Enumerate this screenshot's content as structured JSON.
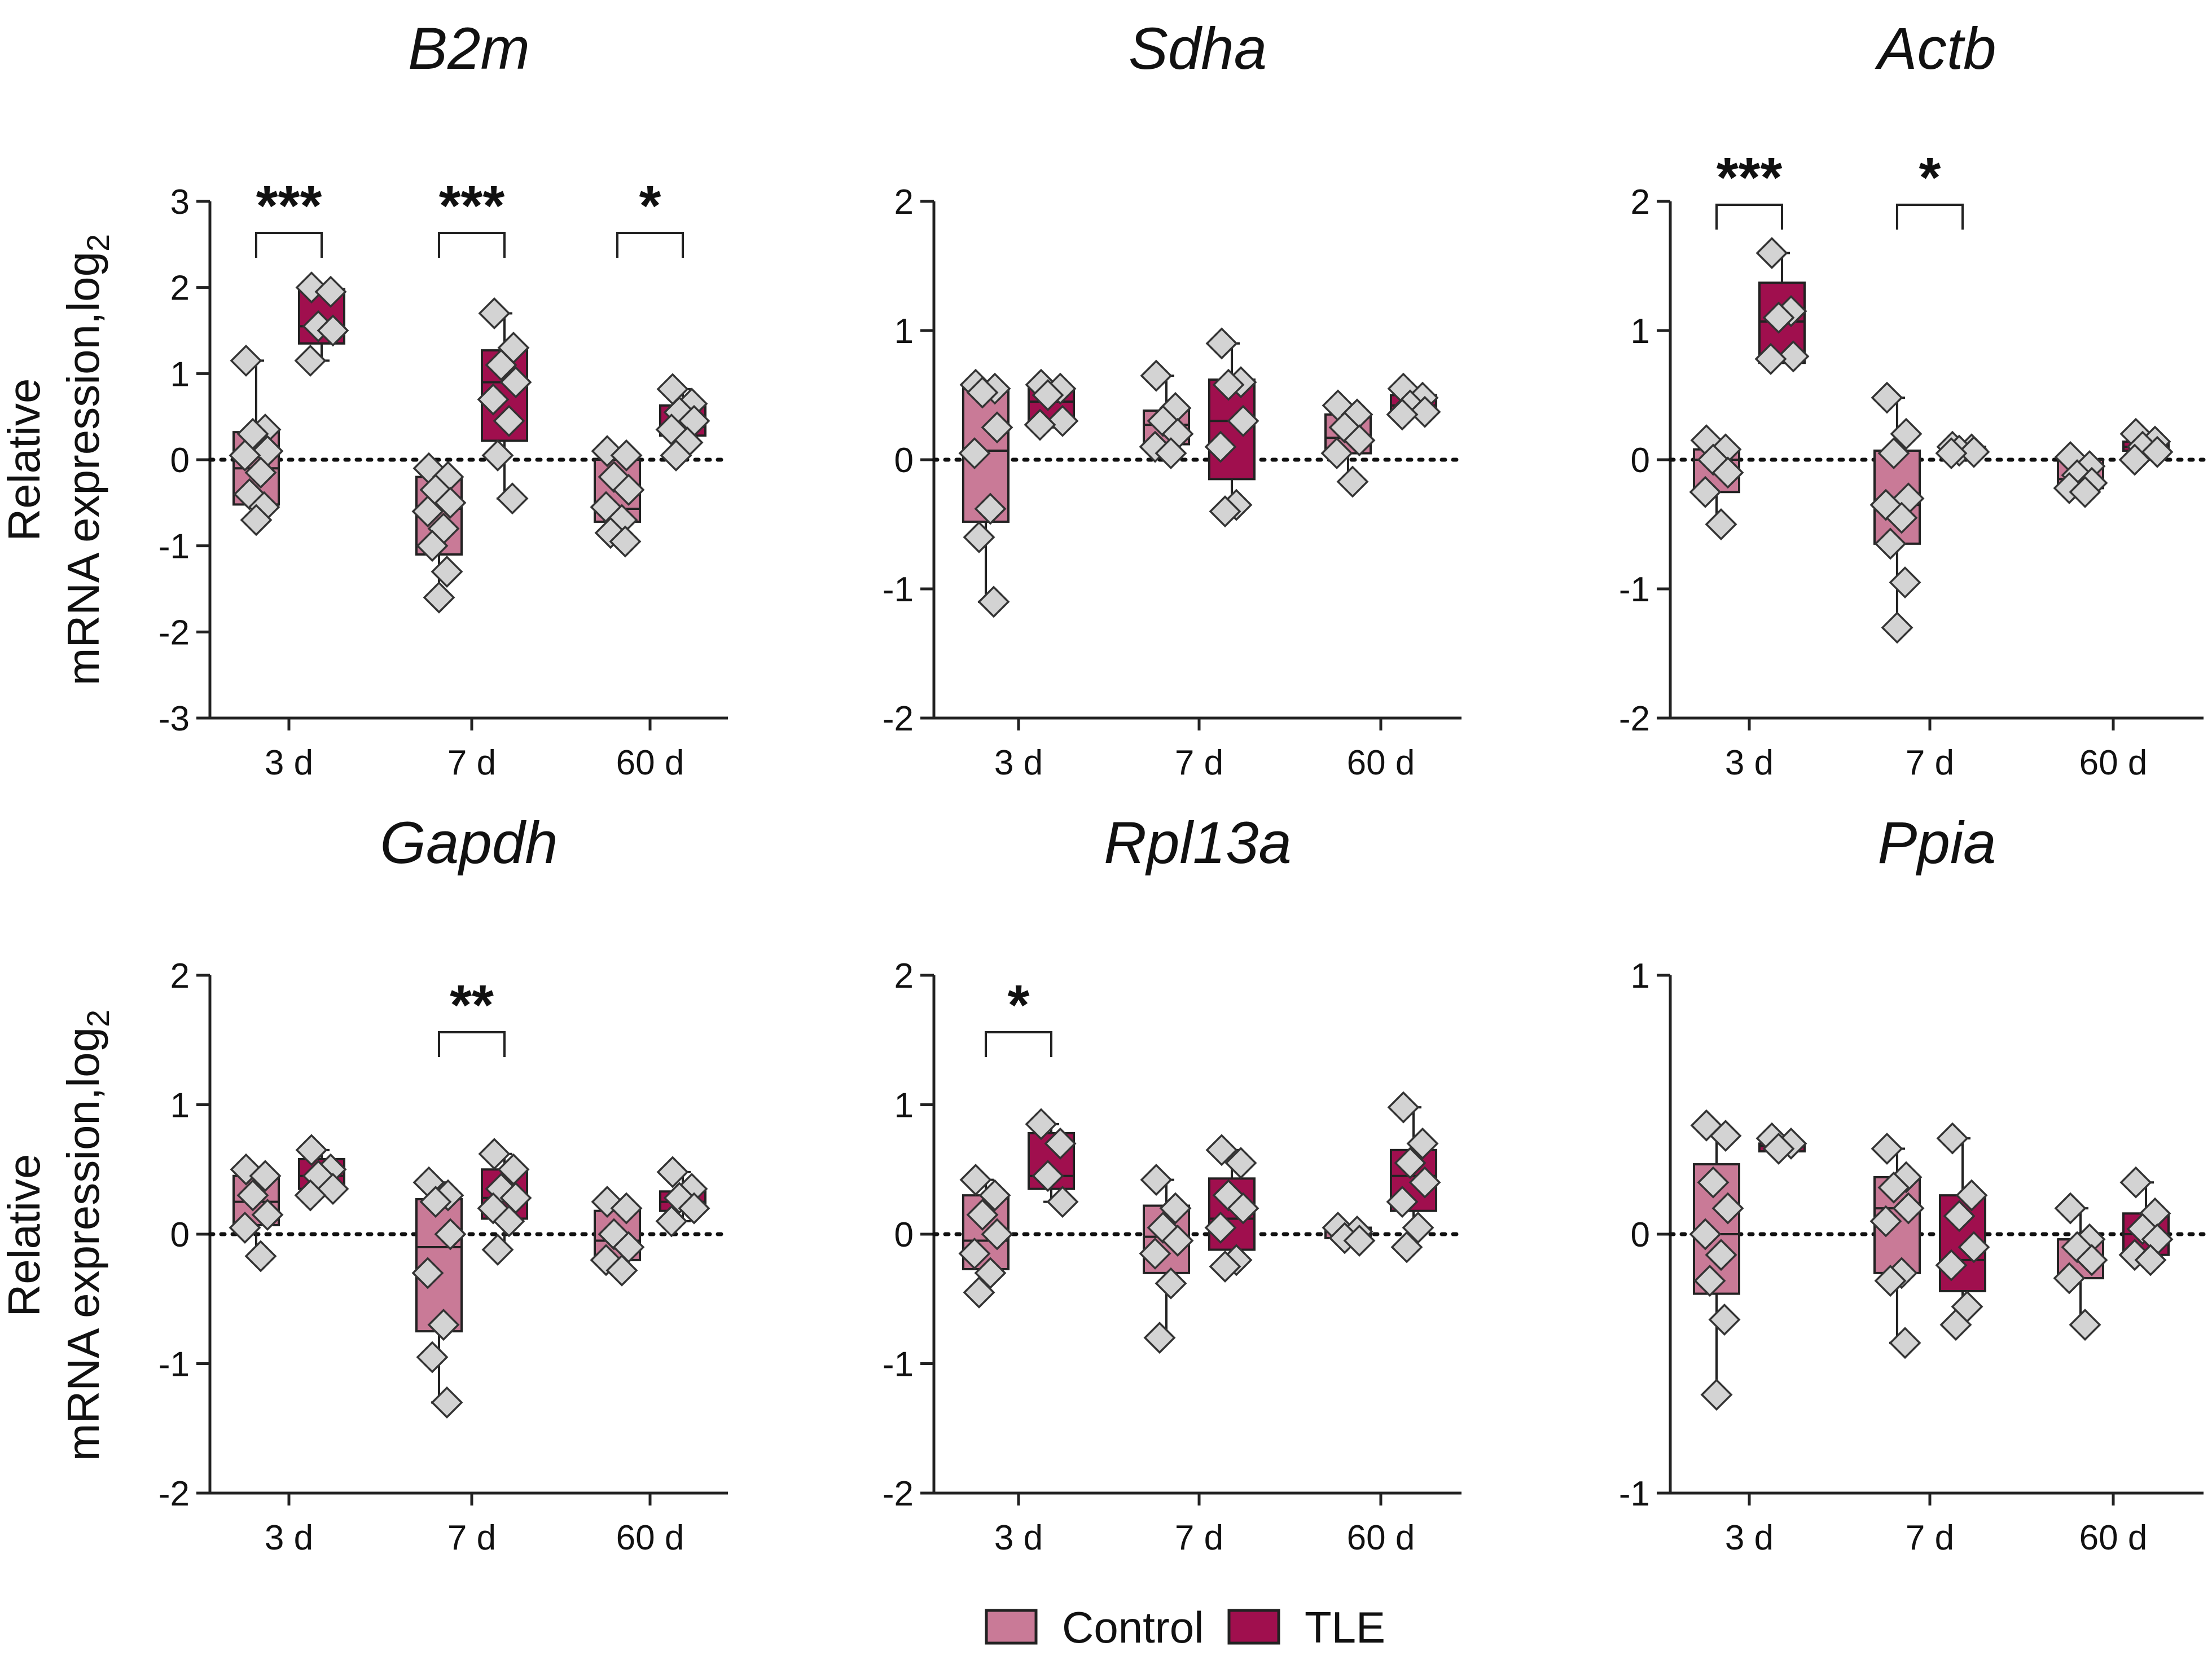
{
  "legend": [
    {
      "label": "Control",
      "color": "#c97a97"
    },
    {
      "label": "TLE",
      "color": "#a00f4e"
    }
  ],
  "colors": {
    "control": "#c97a97",
    "tle": "#a00f4e",
    "point_fill": "#d3d3d3",
    "line": "#222222"
  },
  "chart_data": [
    {
      "type": "box",
      "title": "B2m",
      "ylabel_line1": "Relative",
      "ylabel_line2": "mRNA expression,log",
      "ylabel_sub": "2",
      "categories": [
        "3 d",
        "7 d",
        "60 d"
      ],
      "ylim": [
        -3,
        3
      ],
      "yticks": [
        3,
        2,
        1,
        0,
        -1,
        -2,
        -3
      ],
      "series": [
        {
          "name": "Control",
          "boxes": [
            {
              "min": -0.7,
              "q1": -0.52,
              "median": -0.1,
              "q3": 0.32,
              "max": 1.15,
              "points": [
                1.15,
                0.35,
                0.3,
                0.1,
                0.05,
                -0.15,
                -0.4,
                -0.55,
                -0.7
              ]
            },
            {
              "min": -1.6,
              "q1": -1.1,
              "median": -0.57,
              "q3": -0.2,
              "max": -0.1,
              "points": [
                -0.1,
                -0.2,
                -0.35,
                -0.5,
                -0.6,
                -0.8,
                -1.0,
                -1.3,
                -1.6
              ]
            },
            {
              "min": -0.95,
              "q1": -0.72,
              "median": -0.57,
              "q3": 0.0,
              "max": 0.1,
              "points": [
                0.1,
                0.05,
                -0.2,
                -0.35,
                -0.55,
                -0.7,
                -0.85,
                -0.95
              ]
            }
          ]
        },
        {
          "name": "TLE",
          "boxes": [
            {
              "min": 1.15,
              "q1": 1.35,
              "median": 1.55,
              "q3": 1.98,
              "max": 2.0,
              "points": [
                2.0,
                1.95,
                1.55,
                1.5,
                1.15
              ]
            },
            {
              "min": -0.45,
              "q1": 0.22,
              "median": 0.9,
              "q3": 1.27,
              "max": 1.7,
              "points": [
                1.7,
                1.3,
                1.1,
                0.9,
                0.7,
                0.45,
                0.05,
                -0.45
              ]
            },
            {
              "min": 0.05,
              "q1": 0.28,
              "median": 0.38,
              "q3": 0.63,
              "max": 0.82,
              "points": [
                0.82,
                0.65,
                0.55,
                0.45,
                0.35,
                0.2,
                0.05
              ]
            }
          ]
        }
      ],
      "significance": [
        {
          "group": 0,
          "label": "***"
        },
        {
          "group": 1,
          "label": "***"
        },
        {
          "group": 2,
          "label": "*"
        }
      ]
    },
    {
      "type": "box",
      "title": "Sdha",
      "ylabel_line1": "",
      "ylabel_line2": "",
      "ylabel_sub": "",
      "categories": [
        "3 d",
        "7 d",
        "60 d"
      ],
      "ylim": [
        -2,
        2
      ],
      "yticks": [
        2,
        1,
        0,
        -1,
        -2
      ],
      "series": [
        {
          "name": "Control",
          "boxes": [
            {
              "min": -1.1,
              "q1": -0.48,
              "median": 0.07,
              "q3": 0.55,
              "max": 0.6,
              "points": [
                0.58,
                0.55,
                0.52,
                0.25,
                0.05,
                -0.38,
                -0.6,
                -1.1
              ]
            },
            {
              "min": 0.05,
              "q1": 0.12,
              "median": 0.27,
              "q3": 0.38,
              "max": 0.65,
              "points": [
                0.65,
                0.4,
                0.3,
                0.2,
                0.1,
                0.05
              ]
            },
            {
              "min": -0.17,
              "q1": 0.05,
              "median": 0.17,
              "q3": 0.35,
              "max": 0.42,
              "points": [
                0.42,
                0.35,
                0.25,
                0.15,
                0.05,
                -0.17
              ]
            }
          ]
        },
        {
          "name": "TLE",
          "boxes": [
            {
              "min": 0.25,
              "q1": 0.3,
              "median": 0.45,
              "q3": 0.55,
              "max": 0.58,
              "points": [
                0.58,
                0.55,
                0.5,
                0.3,
                0.27
              ]
            },
            {
              "min": -0.4,
              "q1": -0.15,
              "median": 0.3,
              "q3": 0.62,
              "max": 0.9,
              "points": [
                0.9,
                0.6,
                0.58,
                0.3,
                0.1,
                -0.35,
                -0.4
              ]
            },
            {
              "min": 0.35,
              "q1": 0.35,
              "median": 0.42,
              "q3": 0.5,
              "max": 0.55,
              "points": [
                0.55,
                0.48,
                0.42,
                0.37,
                0.35
              ]
            }
          ]
        }
      ],
      "significance": []
    },
    {
      "type": "box",
      "title": "Actb",
      "ylabel_line1": "",
      "ylabel_line2": "",
      "ylabel_sub": "",
      "categories": [
        "3 d",
        "7 d",
        "60 d"
      ],
      "ylim": [
        -2,
        2
      ],
      "yticks": [
        2,
        1,
        0,
        -1,
        -2
      ],
      "series": [
        {
          "name": "Control",
          "boxes": [
            {
              "min": -0.5,
              "q1": -0.25,
              "median": 0.0,
              "q3": 0.08,
              "max": 0.15,
              "points": [
                0.15,
                0.08,
                0.0,
                -0.1,
                -0.25,
                -0.5
              ]
            },
            {
              "min": -1.3,
              "q1": -0.65,
              "median": -0.35,
              "q3": 0.07,
              "max": 0.48,
              "points": [
                0.48,
                0.2,
                0.05,
                -0.3,
                -0.35,
                -0.45,
                -0.65,
                -0.95,
                -1.3
              ]
            },
            {
              "min": -0.25,
              "q1": -0.22,
              "median": -0.15,
              "q3": 0.0,
              "max": 0.02,
              "points": [
                0.02,
                -0.05,
                -0.12,
                -0.18,
                -0.22,
                -0.25
              ]
            }
          ]
        },
        {
          "name": "TLE",
          "boxes": [
            {
              "min": 0.75,
              "q1": 0.75,
              "median": 1.07,
              "q3": 1.37,
              "max": 1.6,
              "points": [
                1.6,
                1.15,
                1.1,
                0.8,
                0.78
              ]
            },
            {
              "min": 0.05,
              "q1": 0.05,
              "median": 0.07,
              "q3": 0.1,
              "max": 0.1,
              "points": [
                0.1,
                0.08,
                0.07,
                0.06,
                0.05
              ]
            },
            {
              "min": 0.0,
              "q1": 0.07,
              "median": 0.1,
              "q3": 0.14,
              "max": 0.2,
              "points": [
                0.2,
                0.14,
                0.1,
                0.06,
                0.0
              ]
            }
          ]
        }
      ],
      "significance": [
        {
          "group": 0,
          "label": "***"
        },
        {
          "group": 1,
          "label": "*"
        }
      ]
    },
    {
      "type": "box",
      "title": "Gapdh",
      "ylabel_line1": "Relative",
      "ylabel_line2": "mRNA expression,log",
      "ylabel_sub": "2",
      "categories": [
        "3 d",
        "7 d",
        "60 d"
      ],
      "ylim": [
        -2,
        2
      ],
      "yticks": [
        2,
        1,
        0,
        -1,
        -2
      ],
      "series": [
        {
          "name": "Control",
          "boxes": [
            {
              "min": -0.17,
              "q1": 0.07,
              "median": 0.25,
              "q3": 0.45,
              "max": 0.5,
              "points": [
                0.5,
                0.45,
                0.3,
                0.15,
                0.05,
                -0.17
              ]
            },
            {
              "min": -1.3,
              "q1": -0.75,
              "median": -0.1,
              "q3": 0.27,
              "max": 0.4,
              "points": [
                0.4,
                0.3,
                0.25,
                0.0,
                -0.3,
                -0.7,
                -0.95,
                -1.3
              ]
            },
            {
              "min": -0.28,
              "q1": -0.2,
              "median": -0.05,
              "q3": 0.18,
              "max": 0.25,
              "points": [
                0.25,
                0.2,
                0.0,
                -0.1,
                -0.2,
                -0.28
              ]
            }
          ]
        },
        {
          "name": "TLE",
          "boxes": [
            {
              "min": 0.32,
              "q1": 0.35,
              "median": 0.45,
              "q3": 0.58,
              "max": 0.65,
              "points": [
                0.65,
                0.5,
                0.45,
                0.35,
                0.3
              ]
            },
            {
              "min": -0.12,
              "q1": 0.12,
              "median": 0.28,
              "q3": 0.5,
              "max": 0.62,
              "points": [
                0.62,
                0.5,
                0.35,
                0.28,
                0.2,
                0.1,
                -0.12
              ]
            },
            {
              "min": 0.1,
              "q1": 0.18,
              "median": 0.25,
              "q3": 0.33,
              "max": 0.48,
              "points": [
                0.48,
                0.35,
                0.28,
                0.2,
                0.1
              ]
            }
          ]
        }
      ],
      "significance": [
        {
          "group": 1,
          "label": "**"
        }
      ]
    },
    {
      "type": "box",
      "title": "Rpl13a",
      "ylabel_line1": "",
      "ylabel_line2": "",
      "ylabel_sub": "",
      "categories": [
        "3 d",
        "7 d",
        "60 d"
      ],
      "ylim": [
        -2,
        2
      ],
      "yticks": [
        2,
        1,
        0,
        -1,
        -2
      ],
      "series": [
        {
          "name": "Control",
          "boxes": [
            {
              "min": -0.45,
              "q1": -0.27,
              "median": -0.05,
              "q3": 0.3,
              "max": 0.42,
              "points": [
                0.42,
                0.3,
                0.15,
                0.0,
                -0.15,
                -0.3,
                -0.45
              ]
            },
            {
              "min": -0.8,
              "q1": -0.3,
              "median": -0.02,
              "q3": 0.22,
              "max": 0.42,
              "points": [
                0.42,
                0.2,
                0.05,
                -0.05,
                -0.15,
                -0.38,
                -0.8
              ]
            },
            {
              "min": -0.05,
              "q1": -0.03,
              "median": 0.02,
              "q3": 0.05,
              "max": 0.05,
              "points": [
                0.05,
                0.02,
                -0.03,
                -0.05
              ]
            }
          ]
        },
        {
          "name": "TLE",
          "boxes": [
            {
              "min": 0.25,
              "q1": 0.35,
              "median": 0.45,
              "q3": 0.78,
              "max": 0.85,
              "points": [
                0.85,
                0.7,
                0.45,
                0.25
              ]
            },
            {
              "min": -0.25,
              "q1": -0.12,
              "median": 0.12,
              "q3": 0.43,
              "max": 0.65,
              "points": [
                0.65,
                0.55,
                0.3,
                0.2,
                0.05,
                -0.2,
                -0.25
              ]
            },
            {
              "min": -0.1,
              "q1": 0.18,
              "median": 0.45,
              "q3": 0.65,
              "max": 0.98,
              "points": [
                0.98,
                0.7,
                0.55,
                0.4,
                0.25,
                0.05,
                -0.1
              ]
            }
          ]
        }
      ],
      "significance": [
        {
          "group": 0,
          "label": "*"
        }
      ]
    },
    {
      "type": "box",
      "title": "Ppia",
      "ylabel_line1": "",
      "ylabel_line2": "",
      "ylabel_sub": "",
      "categories": [
        "3 d",
        "7 d",
        "60 d"
      ],
      "ylim": [
        -1,
        1
      ],
      "yticks": [
        1,
        0,
        -1
      ],
      "series": [
        {
          "name": "Control",
          "boxes": [
            {
              "min": -0.62,
              "q1": -0.23,
              "median": 0.0,
              "q3": 0.27,
              "max": 0.42,
              "points": [
                0.42,
                0.38,
                0.2,
                0.1,
                0.0,
                -0.08,
                -0.18,
                -0.33,
                -0.62
              ]
            },
            {
              "min": -0.42,
              "q1": -0.15,
              "median": 0.1,
              "q3": 0.22,
              "max": 0.33,
              "points": [
                0.33,
                0.22,
                0.18,
                0.1,
                0.05,
                -0.15,
                -0.18,
                -0.42
              ]
            },
            {
              "min": -0.35,
              "q1": -0.17,
              "median": -0.02,
              "q3": -0.02,
              "max": 0.1,
              "points": [
                0.1,
                -0.02,
                -0.05,
                -0.1,
                -0.17,
                -0.35
              ]
            }
          ]
        },
        {
          "name": "TLE",
          "boxes": [
            {
              "min": 0.32,
              "q1": 0.32,
              "median": 0.34,
              "q3": 0.35,
              "max": 0.37,
              "points": [
                0.37,
                0.35,
                0.33
              ]
            },
            {
              "min": -0.35,
              "q1": -0.22,
              "median": -0.1,
              "q3": 0.15,
              "max": 0.37,
              "points": [
                0.37,
                0.15,
                0.07,
                -0.05,
                -0.12,
                -0.28,
                -0.35
              ]
            },
            {
              "min": -0.1,
              "q1": -0.08,
              "median": 0.0,
              "q3": 0.08,
              "max": 0.2,
              "points": [
                0.2,
                0.08,
                0.02,
                -0.02,
                -0.08,
                -0.1
              ]
            }
          ]
        }
      ],
      "significance": []
    }
  ]
}
